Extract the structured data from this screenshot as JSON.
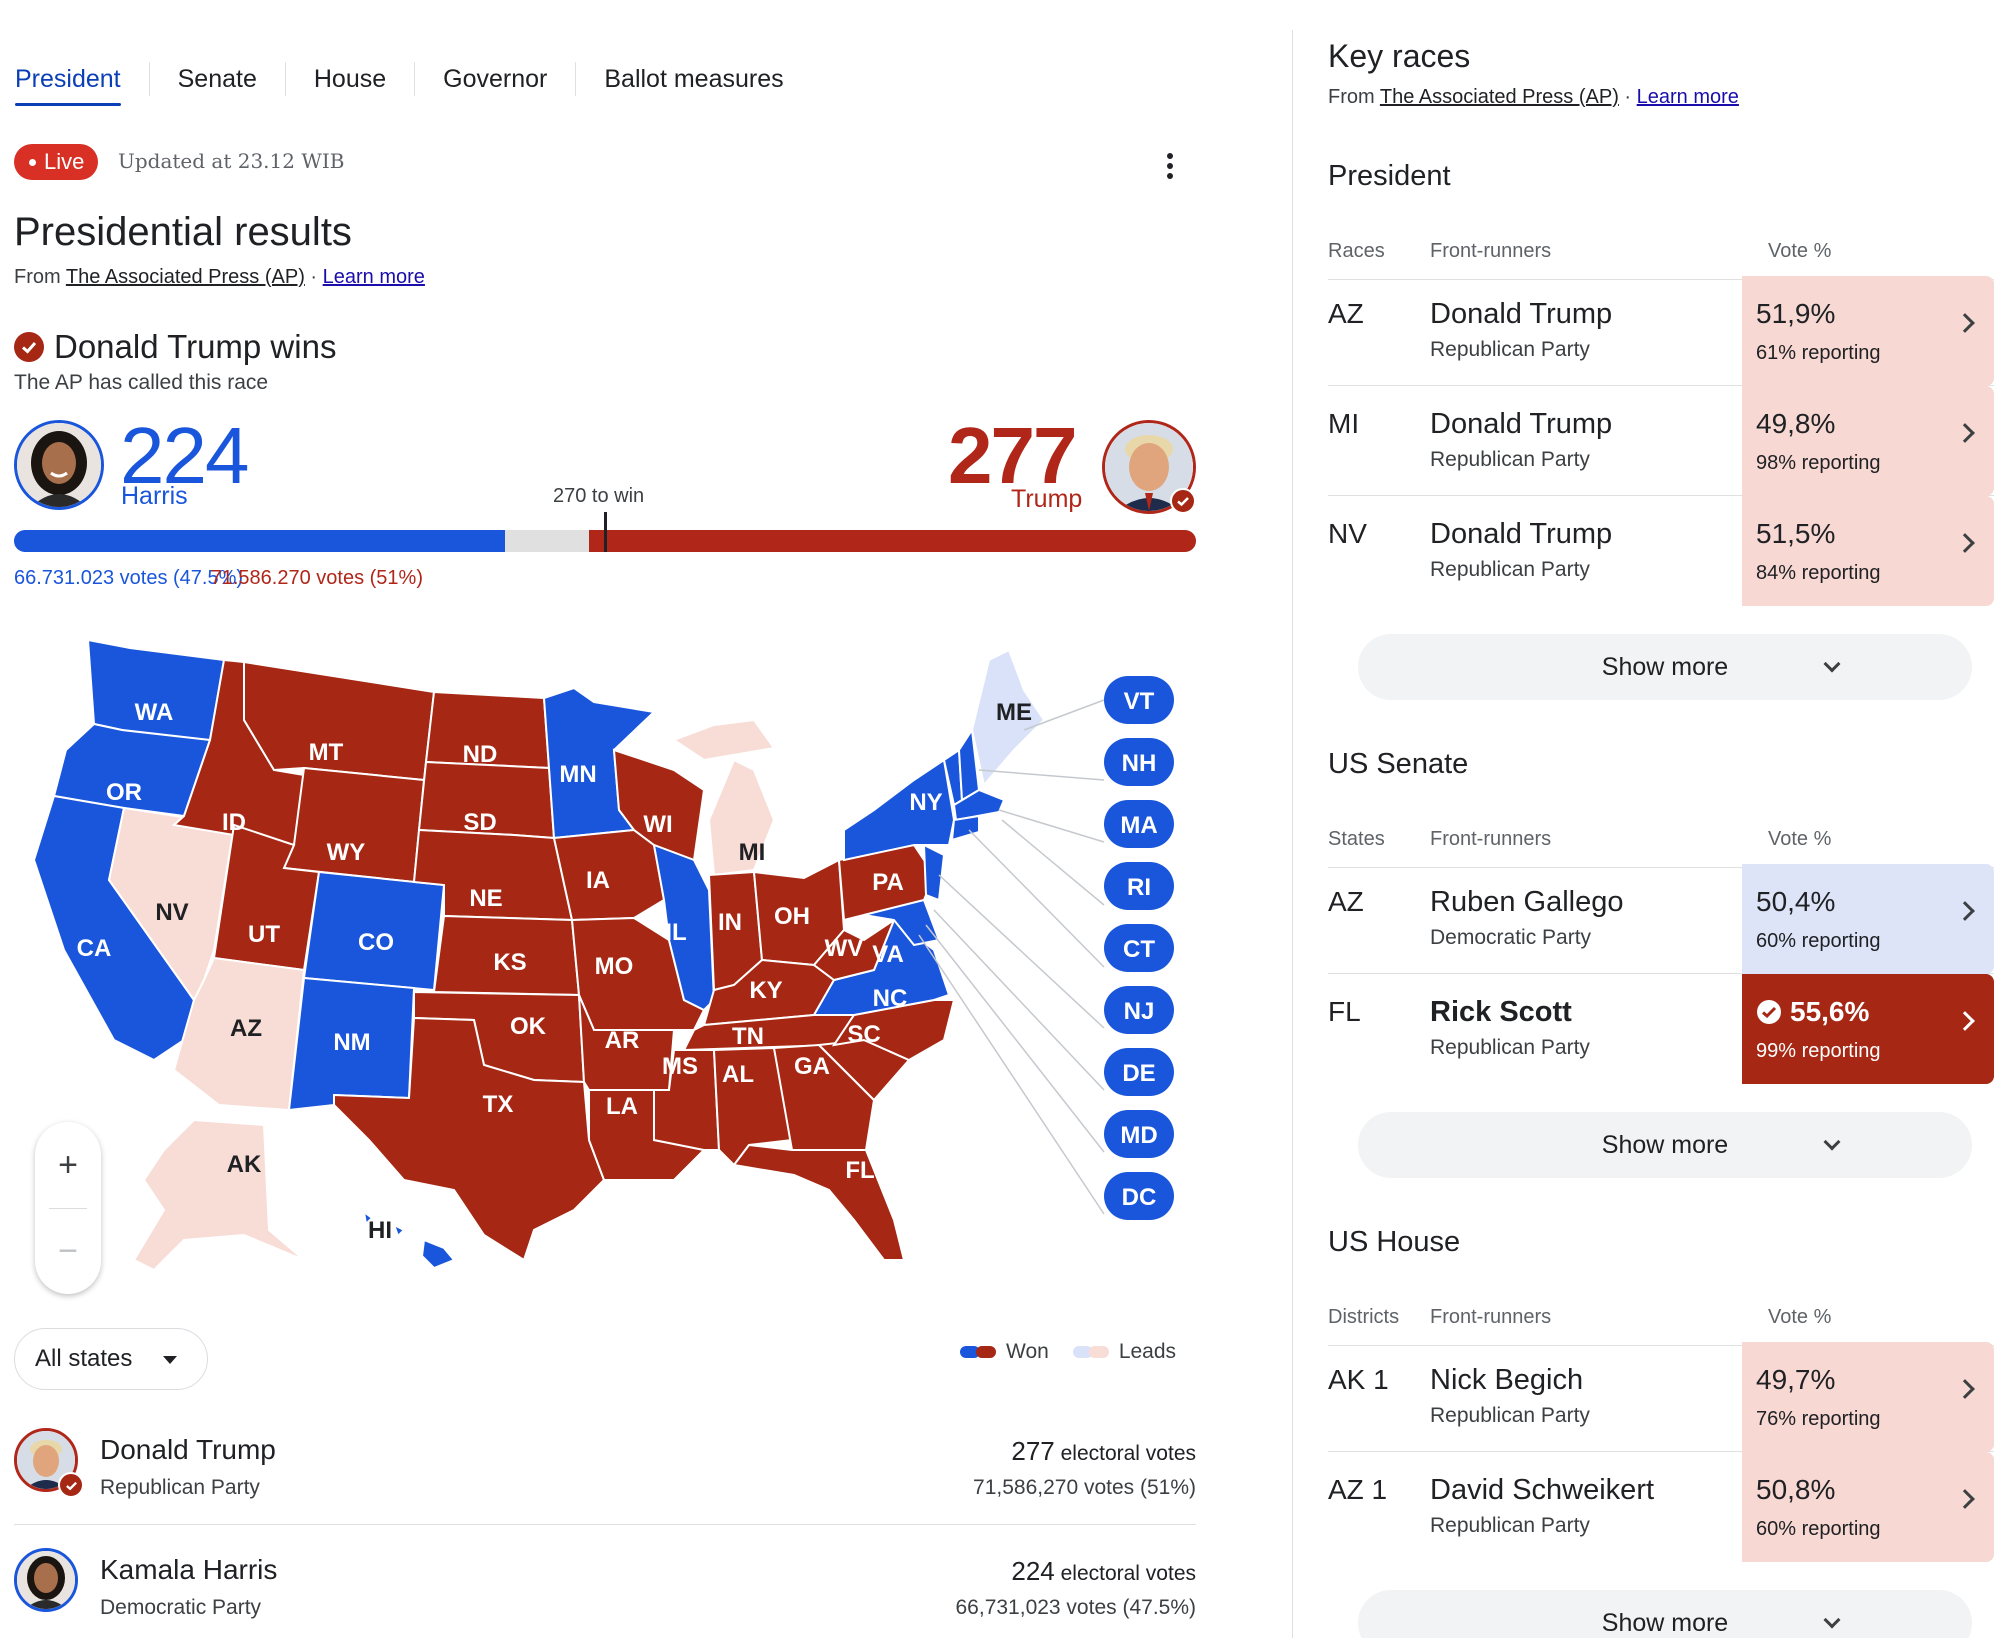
{
  "tabs": [
    "President",
    "Senate",
    "House",
    "Governor",
    "Ballot measures"
  ],
  "live_label": "Live",
  "updated_text": "Updated at 23.12 WIB",
  "title": "Presidential results",
  "from_text": "From",
  "source_link": "The Associated Press (AP)",
  "sep": "·",
  "learn_more": "Learn more",
  "winner_text": "Donald Trump wins",
  "called_text": "The AP has called this race",
  "harris": {
    "ev": "224",
    "name": "Harris",
    "votes": "66.731.023 votes (47.5%)",
    "share": 0.4153
  },
  "trump": {
    "ev": "277",
    "name": "Trump",
    "votes": "71.586.270 votes (51%)",
    "share": 0.5135
  },
  "to_win": "270 to win",
  "map_labels": {
    "WA": "WA",
    "OR": "OR",
    "CA": "CA",
    "NV": "NV",
    "ID": "ID",
    "MT": "MT",
    "WY": "WY",
    "UT": "UT",
    "AZ": "AZ",
    "CO": "CO",
    "NM": "NM",
    "ND": "ND",
    "SD": "SD",
    "NE": "NE",
    "KS": "KS",
    "OK": "OK",
    "TX": "TX",
    "MN": "MN",
    "IA": "IA",
    "MO": "MO",
    "AR": "AR",
    "LA": "LA",
    "WI": "WI",
    "IL": "IL",
    "MI": "MI",
    "IN": "IN",
    "OH": "OH",
    "KY": "KY",
    "TN": "TN",
    "MS": "MS",
    "AL": "AL",
    "GA": "GA",
    "FL": "FL",
    "SC": "SC",
    "NC": "NC",
    "VA": "VA",
    "WV": "WV",
    "PA": "PA",
    "NY": "NY",
    "ME": "ME",
    "AK": "AK",
    "HI": "HI"
  },
  "side_states": [
    "VT",
    "NH",
    "MA",
    "RI",
    "CT",
    "NJ",
    "DE",
    "MD",
    "DC"
  ],
  "colors": {
    "dem_won": "#1a56db",
    "rep_won": "#a52714",
    "dem_leads": "#d9e2f9",
    "rep_leads": "#f8dcd6"
  },
  "all_states": "All states",
  "legend": {
    "won": "Won",
    "leads": "Leads"
  },
  "candidates": [
    {
      "name": "Donald Trump",
      "party": "Republican Party",
      "ev_num": "277",
      "ev_label": "electoral votes",
      "votes": "71,586,270 votes (51%)"
    },
    {
      "name": "Kamala Harris",
      "party": "Democratic Party",
      "ev_num": "224",
      "ev_label": "electoral votes",
      "votes": "66,731,023 votes (47.5%)"
    }
  ],
  "key_races": {
    "title": "Key races",
    "show_more": "Show more",
    "sections": [
      {
        "title": "President",
        "col1": "Races",
        "col2": "Front-runners",
        "col3": "Vote %",
        "rows": [
          {
            "code": "AZ",
            "name": "Donald Trump",
            "party": "Republican Party",
            "pct": "51,9%",
            "reporting": "61% reporting",
            "style": "red"
          },
          {
            "code": "MI",
            "name": "Donald Trump",
            "party": "Republican Party",
            "pct": "49,8%",
            "reporting": "98% reporting",
            "style": "red"
          },
          {
            "code": "NV",
            "name": "Donald Trump",
            "party": "Republican Party",
            "pct": "51,5%",
            "reporting": "84% reporting",
            "style": "red"
          }
        ]
      },
      {
        "title": "US Senate",
        "col1": "States",
        "col2": "Front-runners",
        "col3": "Vote %",
        "rows": [
          {
            "code": "AZ",
            "name": "Ruben Gallego",
            "party": "Democratic Party",
            "pct": "50,4%",
            "reporting": "60% reporting",
            "style": "blue"
          },
          {
            "code": "FL",
            "name": "Rick Scott",
            "party": "Republican Party",
            "pct": "55,6%",
            "reporting": "99% reporting",
            "style": "solid"
          }
        ]
      },
      {
        "title": "US House",
        "col1": "Districts",
        "col2": "Front-runners",
        "col3": "Vote %",
        "rows": [
          {
            "code": "AK 1",
            "name": "Nick Begich",
            "party": "Republican Party",
            "pct": "49,7%",
            "reporting": "76% reporting",
            "style": "red"
          },
          {
            "code": "AZ 1",
            "name": "David Schweikert",
            "party": "Republican Party",
            "pct": "50,8%",
            "reporting": "60% reporting",
            "style": "red"
          }
        ]
      }
    ]
  }
}
